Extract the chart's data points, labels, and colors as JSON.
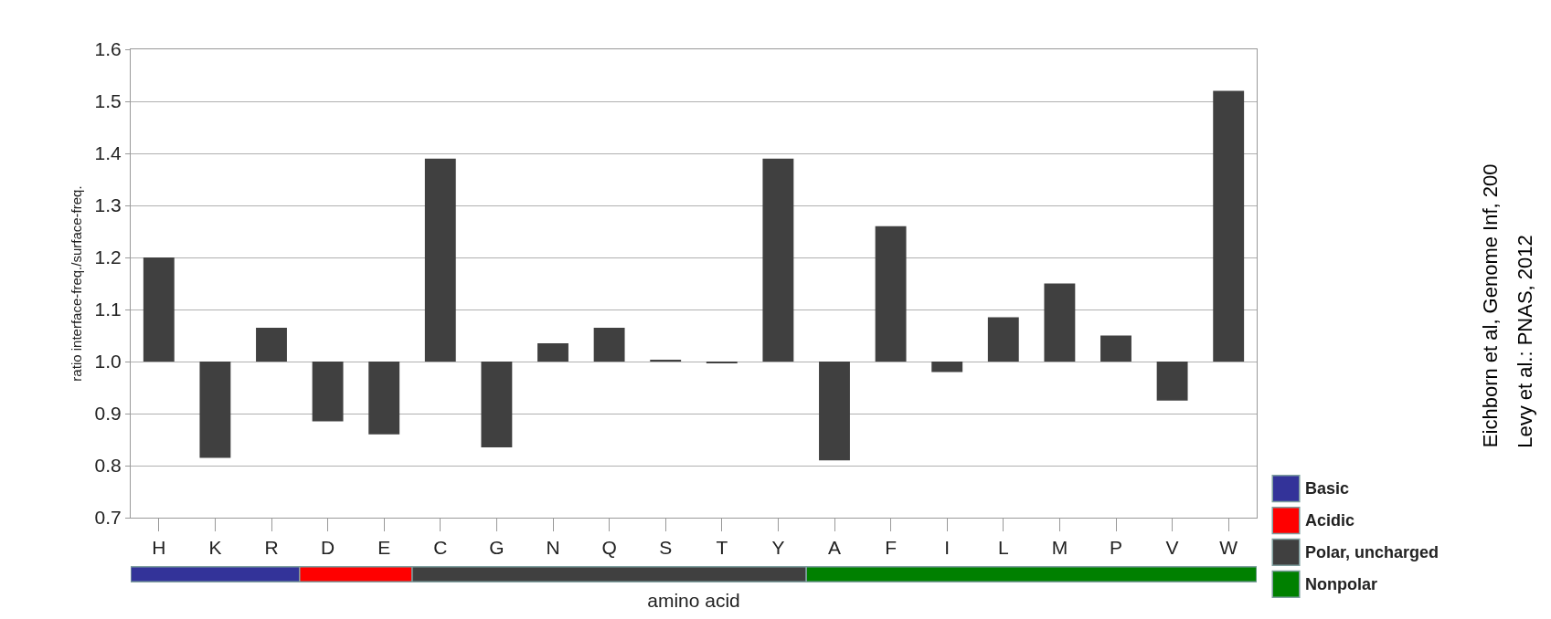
{
  "chart_data": {
    "type": "bar",
    "ylabel": "ratio interface-freq./surface-freq.",
    "xlabel": "amino acid",
    "categories": [
      "H",
      "K",
      "R",
      "D",
      "E",
      "C",
      "G",
      "N",
      "Q",
      "S",
      "T",
      "Y",
      "A",
      "F",
      "I",
      "L",
      "M",
      "P",
      "V",
      "W"
    ],
    "values": [
      0.2,
      -0.185,
      0.065,
      -0.115,
      -0.14,
      0.39,
      -0.165,
      0.035,
      0.065,
      0.003,
      -0.003,
      0.39,
      -0.19,
      0.26,
      -0.02,
      0.085,
      0.15,
      0.05,
      -0.075,
      0.52
    ],
    "base": [
      1.0,
      1.0,
      1.0,
      1.0,
      1.0,
      1.0,
      1.0,
      1.0,
      1.0,
      1.0,
      1.0,
      1.0,
      1.0,
      1.0,
      1.0,
      1.0,
      1.0,
      1.0,
      1.0,
      1.0
    ],
    "color": "#404040",
    "ylim": [
      0.7,
      1.6
    ],
    "yticks": [
      {
        "value": 0.7,
        "label": "0.7"
      },
      {
        "value": 0.8,
        "label": "0.8"
      },
      {
        "value": 0.9,
        "label": "0.9"
      },
      {
        "value": 1.0,
        "label": "1.0"
      },
      {
        "value": 1.1,
        "label": "1.1"
      },
      {
        "value": 1.2,
        "label": "1.2"
      },
      {
        "value": 1.3,
        "label": "1.3"
      },
      {
        "value": 1.4,
        "label": "1.4"
      },
      {
        "value": 1.5,
        "label": "1.5"
      },
      {
        "value": 1.6,
        "label": "1.6"
      }
    ],
    "grid": "y",
    "annotations": [
      "Basic",
      "Acidic",
      "Polar, uncharged",
      "Nonpolar",
      "Eichborn et al, Genome Inf, 200",
      "Levy et al.: PNAS, 2012"
    ]
  }
}
